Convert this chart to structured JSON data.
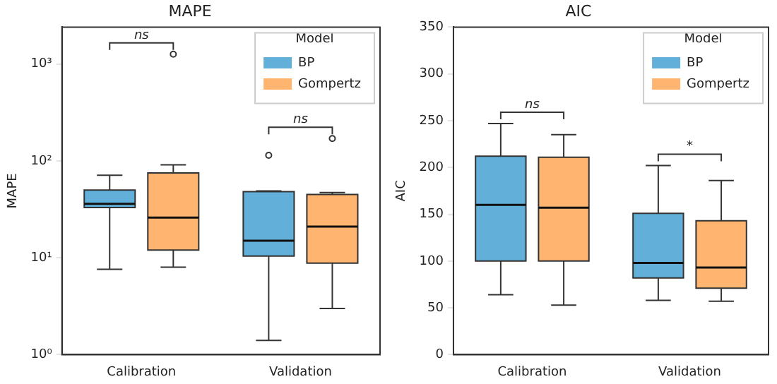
{
  "chart_data": [
    {
      "type": "box",
      "title": "MAPE",
      "ylabel": "MAPE",
      "legend_title": "Model",
      "legend": "top right",
      "log": "y",
      "categories": [
        "Calibration",
        "Validation"
      ],
      "ylim": [
        1,
        2400
      ],
      "yticks": [
        {
          "value": 1,
          "label": "10⁰"
        },
        {
          "value": 10,
          "label": "10¹"
        },
        {
          "value": 100,
          "label": "10²"
        },
        {
          "value": 1000,
          "label": "10³"
        }
      ],
      "series": [
        {
          "name": "BP",
          "color": "#62b0d9",
          "boxes": [
            {
              "low": 7.6,
              "q1": 33,
              "median": 36,
              "q3": 50,
              "high": 71
            },
            {
              "low": 1.4,
              "q1": 10.4,
              "median": 15,
              "q3": 48,
              "high": 49,
              "outliers": [
                114
              ]
            }
          ]
        },
        {
          "name": "Gompertz",
          "color": "#ffb470",
          "boxes": [
            {
              "low": 8,
              "q1": 12,
              "median": 26,
              "q3": 75,
              "high": 91,
              "outliers": [
                1260
              ]
            },
            {
              "low": 3,
              "q1": 8.8,
              "median": 21,
              "q3": 45,
              "high": 47,
              "outliers": [
                170
              ]
            }
          ]
        }
      ],
      "annotations": [
        "ns",
        "ns"
      ]
    },
    {
      "type": "box",
      "title": "AIC",
      "ylabel": "AIC",
      "legend_title": "Model",
      "legend": "top right",
      "categories": [
        "Calibration",
        "Validation"
      ],
      "ylim": [
        0,
        350
      ],
      "yticks": [
        0,
        50,
        100,
        150,
        200,
        250,
        300,
        350
      ],
      "series": [
        {
          "name": "BP",
          "color": "#62b0d9",
          "boxes": [
            {
              "low": 64,
              "q1": 100,
              "median": 160,
              "q3": 212,
              "high": 247
            },
            {
              "low": 58,
              "q1": 82,
              "median": 98,
              "q3": 151,
              "high": 202
            }
          ]
        },
        {
          "name": "Gompertz",
          "color": "#ffb470",
          "boxes": [
            {
              "low": 53,
              "q1": 100,
              "median": 157,
              "q3": 211,
              "high": 235
            },
            {
              "low": 57,
              "q1": 71,
              "median": 93,
              "q3": 143,
              "high": 186
            }
          ]
        }
      ],
      "annotations": [
        "ns",
        "*"
      ]
    }
  ]
}
